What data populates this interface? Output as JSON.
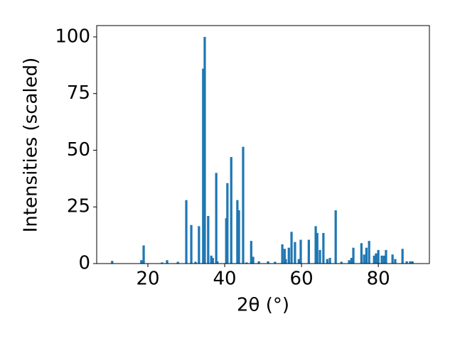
{
  "chart_data": {
    "type": "bar",
    "xlabel": "2θ (°)",
    "ylabel": "Intensities (scaled)",
    "color": "#1f77b4",
    "x": [
      10.7,
      18.3,
      18.9,
      23.7,
      25.0,
      27.8,
      30.0,
      31.3,
      32.4,
      33.3,
      34.4,
      34.8,
      35.7,
      36.5,
      36.9,
      37.8,
      38.1,
      40.4,
      40.7,
      41.7,
      43.3,
      43.7,
      44.8,
      45.7,
      46.9,
      47.4,
      48.9,
      51.3,
      53.1,
      55.0,
      55.6,
      55.9,
      56.7,
      57.4,
      58.3,
      59.3,
      59.8,
      61.9,
      63.7,
      64.1,
      64.8,
      65.7,
      66.7,
      67.4,
      68.9,
      70.4,
      72.4,
      73.0,
      73.5,
      75.6,
      76.3,
      76.9,
      77.6,
      78.9,
      79.4,
      80.0,
      80.9,
      81.5,
      82.0,
      83.7,
      84.4,
      86.3,
      87.4,
      88.3,
      88.9
    ],
    "values": [
      1.2,
      1.5,
      8,
      0.5,
      1.5,
      0.8,
      28,
      17,
      0.8,
      16.5,
      86,
      100,
      21,
      3.5,
      2.5,
      40,
      1,
      20,
      35.5,
      47,
      28,
      23.5,
      51.5,
      0.5,
      10,
      3,
      1,
      1,
      0.8,
      8.5,
      6.5,
      2,
      7,
      14,
      9.5,
      2,
      10.5,
      10.5,
      16.5,
      13.5,
      6,
      13.5,
      2,
      2.5,
      23.5,
      0.8,
      1.5,
      2.5,
      7,
      9,
      4,
      7,
      10,
      3.5,
      4.5,
      6,
      3.5,
      3.5,
      6,
      4,
      2,
      6.5,
      1,
      1,
      1
    ],
    "xlim": [
      6.67,
      93.3
    ],
    "xticks": [
      20,
      40,
      60,
      80
    ],
    "ylim": [
      0,
      105
    ],
    "yticks": [
      0,
      25,
      50,
      75,
      100
    ]
  }
}
